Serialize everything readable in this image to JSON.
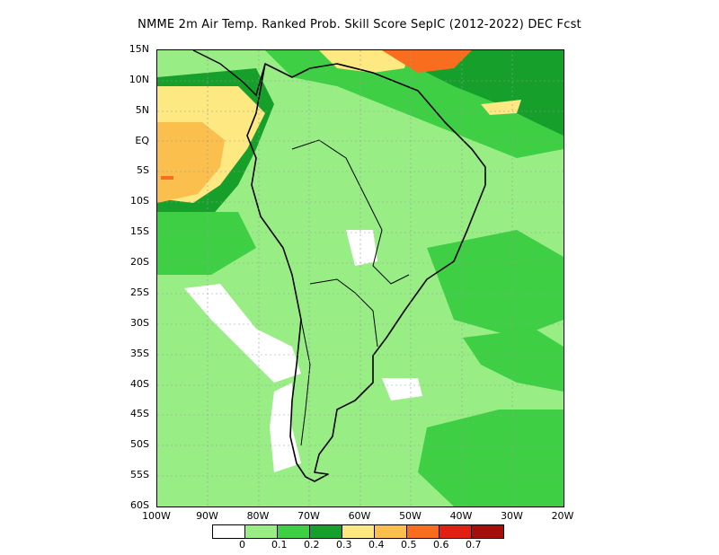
{
  "title": "NMME  2m Air Temp. Ranked Prob. Skill Score SepIC (2012-2022) DEC Fcst",
  "lat_labels": [
    "15N",
    "10N",
    "5N",
    "EQ",
    "5S",
    "10S",
    "15S",
    "20S",
    "25S",
    "30S",
    "35S",
    "40S",
    "45S",
    "50S",
    "55S",
    "60S"
  ],
  "lon_labels": [
    "100W",
    "90W",
    "80W",
    "70W",
    "60W",
    "50W",
    "40W",
    "30W",
    "20W"
  ],
  "legend": {
    "colors": [
      "#ffffff",
      "#98ee85",
      "#3fcf45",
      "#16a02b",
      "#fde882",
      "#fbbf4d",
      "#f96e1e",
      "#e11f12",
      "#a40f0b"
    ],
    "labels": [
      "0",
      "0.1",
      "0.2",
      "0.3",
      "0.4",
      "0.5",
      "0.6",
      "0.7"
    ]
  },
  "colors": {
    "very_light_green": "#98ee85",
    "light_green": "#3fcf45",
    "green": "#16a02b",
    "yellow": "#fde882",
    "orange": "#fbbf4d",
    "red_orange": "#f96e1e"
  }
}
